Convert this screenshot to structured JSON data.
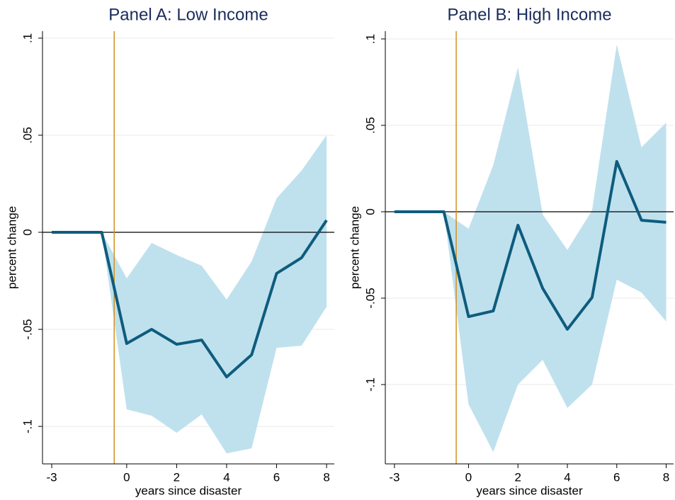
{
  "chart_data": [
    {
      "type": "line",
      "title": "Panel A: Low Income",
      "x_label": "years since disaster",
      "y_label": "percent change",
      "x": [
        -3,
        -2,
        -1,
        0,
        1,
        2,
        3,
        4,
        5,
        6,
        7,
        8
      ],
      "values": [
        0,
        0,
        0,
        -0.0573,
        -0.05,
        -0.0577,
        -0.0555,
        -0.0745,
        -0.0631,
        -0.0212,
        -0.0131,
        0.0062
      ],
      "upper": [
        0,
        0,
        0,
        -0.0237,
        -0.0055,
        -0.0117,
        -0.0172,
        -0.0347,
        -0.015,
        0.0175,
        0.0318,
        0.05
      ],
      "lower": [
        0,
        0,
        0,
        -0.0912,
        -0.0945,
        -0.1033,
        -0.0938,
        -0.1139,
        -0.1113,
        -0.0595,
        -0.0584,
        -0.0383
      ],
      "color": "#0e5c7e",
      "band_color": "#bfe1ed",
      "vline": -0.5,
      "vline_color": "#d4901c",
      "hline": 0,
      "xlim": [
        -3.37,
        8.31
      ],
      "ylim": [
        -0.1193,
        0.1036
      ],
      "xticks": [
        -3,
        0,
        2,
        4,
        6,
        8
      ],
      "yticks": [
        {
          "value": -0.1,
          "label": "-.1"
        },
        {
          "value": -0.05,
          "label": "-.05"
        },
        0,
        {
          "value": 0.05,
          "label": ".05"
        },
        {
          "value": 0.1,
          "label": ".1"
        }
      ],
      "grid": true
    },
    {
      "type": "line",
      "title": "Panel B: High Income",
      "x_label": "years since disaster",
      "y_label": "percent change",
      "x": [
        -3,
        -2,
        -1,
        0,
        1,
        2,
        3,
        4,
        5,
        6,
        7,
        8
      ],
      "values": [
        0,
        0,
        0,
        -0.0607,
        -0.0574,
        -0.0078,
        -0.0443,
        -0.068,
        -0.0496,
        0.0291,
        -0.0049,
        -0.0061
      ],
      "upper": [
        0,
        0,
        0,
        -0.0098,
        0.027,
        0.0836,
        -0.0016,
        -0.0221,
        0.0008,
        0.0967,
        0.0373,
        0.0516
      ],
      "lower": [
        0,
        0,
        0,
        -0.1115,
        -0.139,
        -0.1,
        -0.0857,
        -0.1135,
        -0.1,
        -0.0393,
        -0.0467,
        -0.0635
      ],
      "color": "#0e5c7e",
      "band_color": "#bfe1ed",
      "vline": -0.5,
      "vline_color": "#d4901c",
      "hline": 0,
      "xlim": [
        -3.37,
        8.3
      ],
      "ylim": [
        -0.1459,
        0.1045
      ],
      "xticks": [
        -3,
        0,
        2,
        4,
        6,
        8
      ],
      "yticks": [
        {
          "value": -0.1,
          "label": "-.1"
        },
        {
          "value": -0.05,
          "label": "-.05"
        },
        0,
        {
          "value": 0.05,
          "label": ".05"
        },
        {
          "value": 0.1,
          "label": ".1"
        }
      ],
      "grid": true
    }
  ]
}
